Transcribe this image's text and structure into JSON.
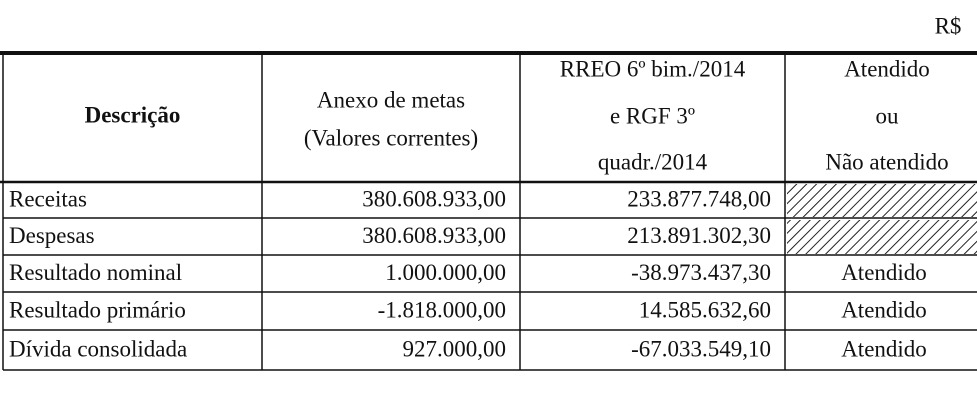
{
  "unit": "R$",
  "table": {
    "header": [
      [
        "Descrição"
      ],
      [
        "Anexo de metas",
        "(Valores correntes)"
      ],
      [
        "RREO 6º bim./2014",
        "e RGF 3º",
        "quadr./2014"
      ],
      [
        "Atendido",
        "ou",
        "Não atendido"
      ]
    ],
    "rows": [
      [
        "Receitas",
        "380.608.933,00",
        "233.877.748,00"
      ],
      [
        "Despesas",
        "380.608.933,00",
        "213.891.302,30"
      ],
      [
        "Resultado nominal",
        "1.000.000,00",
        "-38.973.437,30",
        "Atendido"
      ],
      [
        "Resultado primário",
        "-1.818.000,00",
        "14.585.632,60",
        "Atendido"
      ],
      [
        "Dívida consolidada",
        "927.000,00",
        "-67.033.549,10",
        "Atendido"
      ]
    ]
  }
}
